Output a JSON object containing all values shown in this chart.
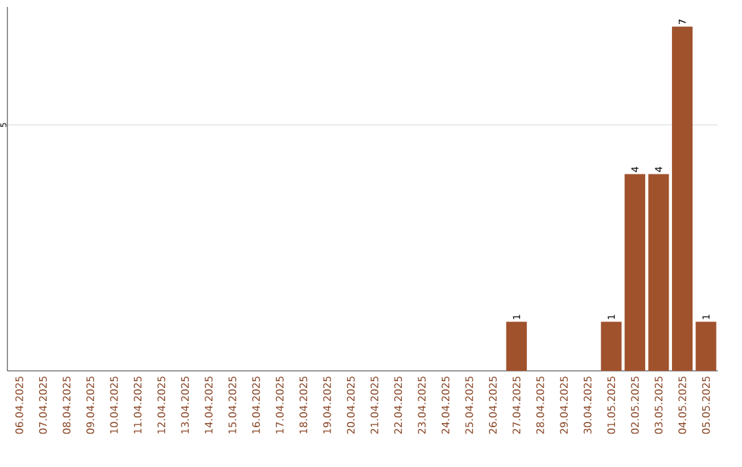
{
  "chart_data": {
    "type": "bar",
    "categories": [
      "06.04.2025",
      "07.04.2025",
      "08.04.2025",
      "09.04.2025",
      "10.04.2025",
      "11.04.2025",
      "12.04.2025",
      "13.04.2025",
      "14.04.2025",
      "15.04.2025",
      "16.04.2025",
      "17.04.2025",
      "18.04.2025",
      "19.04.2025",
      "20.04.2025",
      "21.04.2025",
      "22.04.2025",
      "23.04.2025",
      "24.04.2025",
      "25.04.2025",
      "26.04.2025",
      "27.04.2025",
      "28.04.2025",
      "29.04.2025",
      "30.04.2025",
      "01.05.2025",
      "02.05.2025",
      "03.05.2025",
      "04.05.2025",
      "05.05.2025"
    ],
    "values": [
      null,
      null,
      null,
      null,
      null,
      null,
      null,
      null,
      null,
      null,
      null,
      null,
      null,
      null,
      null,
      null,
      null,
      null,
      null,
      null,
      null,
      1,
      null,
      null,
      null,
      1,
      4,
      4,
      7,
      1
    ],
    "color": "#a0522d",
    "ylim": [
      0,
      7.4
    ],
    "yticks": [
      5
    ],
    "grid": "y",
    "data_labels": true
  }
}
